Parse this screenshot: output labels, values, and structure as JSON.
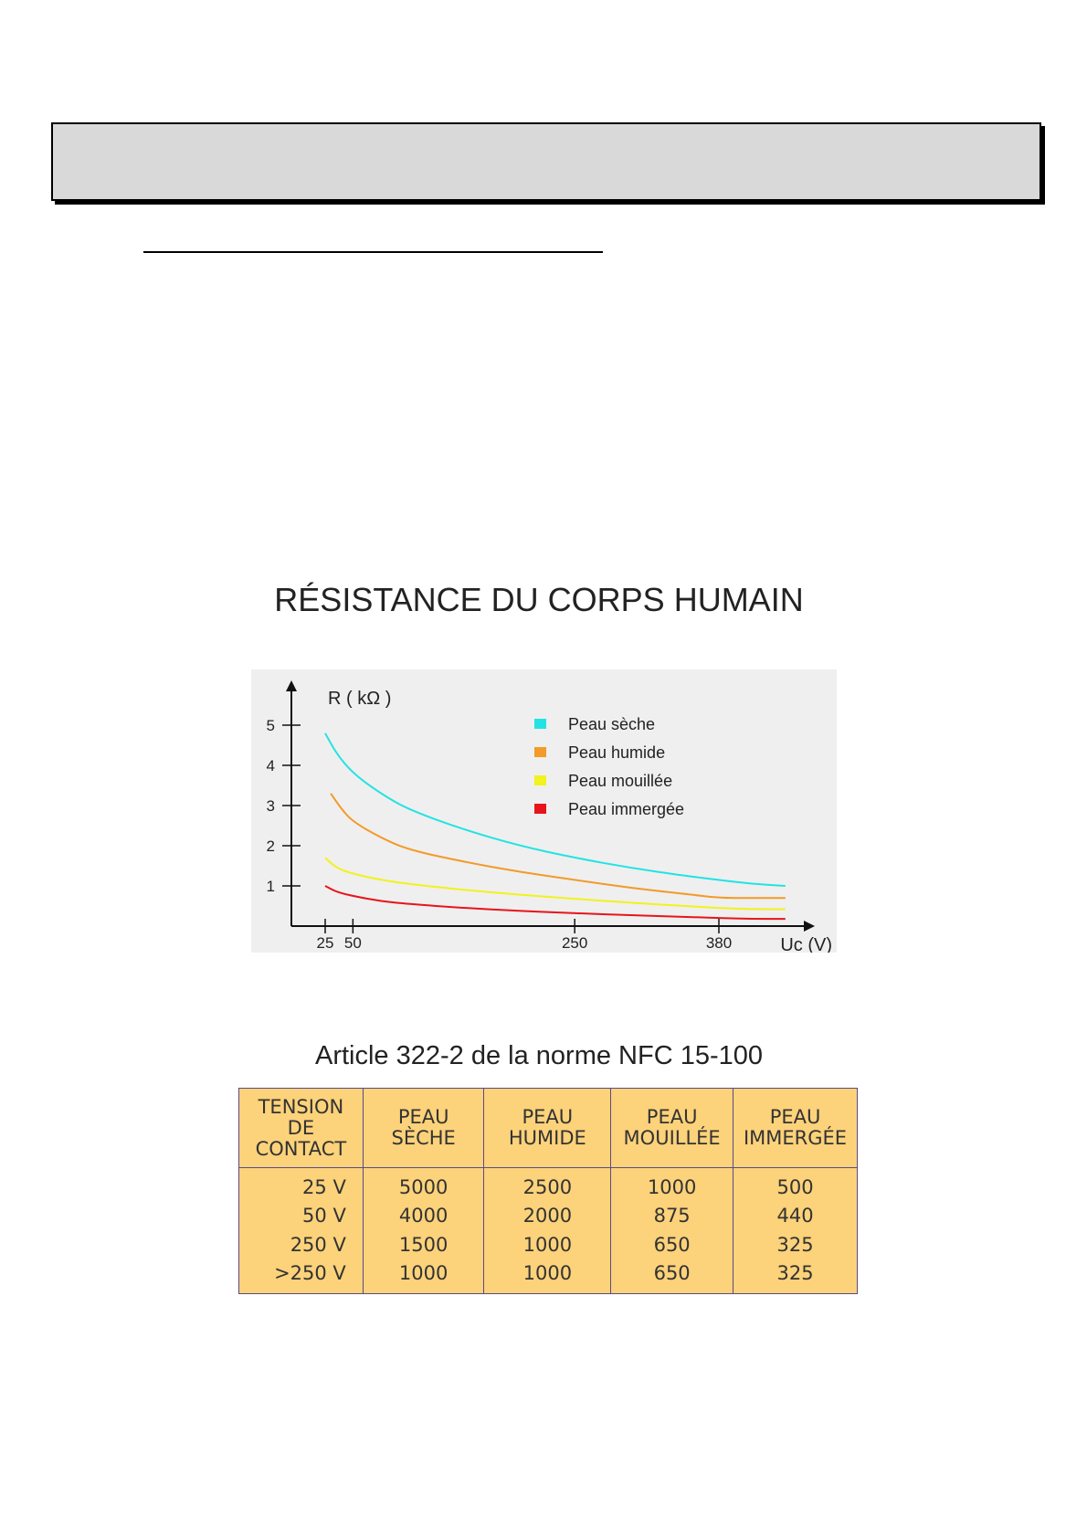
{
  "chart": {
    "title": "RÉSISTANCE DU CORPS HUMAIN"
  },
  "chart_data": {
    "type": "line",
    "title": "RÉSISTANCE DU CORPS HUMAIN",
    "xlabel": "Uc (V)",
    "ylabel": "R ( kΩ )",
    "x_ticks": [
      "25",
      "50",
      "250",
      "380"
    ],
    "y_ticks": [
      "1",
      "2",
      "3",
      "4",
      "5"
    ],
    "xlim": [
      0,
      470
    ],
    "ylim": [
      0,
      5.5
    ],
    "grid": false,
    "legend_position": "top-right",
    "series": [
      {
        "name": "Peau sèche",
        "color": "#22e3e3",
        "x": [
          25,
          35,
          50,
          75,
          100,
          150,
          200,
          250,
          300,
          350,
          380,
          410,
          440
        ],
        "y": [
          4.8,
          4.3,
          3.8,
          3.3,
          2.9,
          2.4,
          2.0,
          1.7,
          1.45,
          1.25,
          1.15,
          1.05,
          1.0
        ]
      },
      {
        "name": "Peau humide",
        "color": "#f39a28",
        "x": [
          30,
          40,
          50,
          75,
          100,
          150,
          200,
          250,
          300,
          350,
          380,
          410,
          440
        ],
        "y": [
          3.3,
          2.9,
          2.6,
          2.2,
          1.9,
          1.6,
          1.35,
          1.15,
          0.95,
          0.8,
          0.7,
          0.7,
          0.7
        ]
      },
      {
        "name": "Peau mouillée",
        "color": "#f2f21c",
        "x": [
          25,
          35,
          50,
          75,
          100,
          150,
          200,
          250,
          300,
          350,
          380,
          410,
          440
        ],
        "y": [
          1.7,
          1.45,
          1.3,
          1.15,
          1.05,
          0.9,
          0.78,
          0.68,
          0.58,
          0.5,
          0.45,
          0.42,
          0.42
        ]
      },
      {
        "name": "Peau immergée",
        "color": "#e8141c",
        "x": [
          25,
          35,
          50,
          75,
          100,
          150,
          200,
          250,
          300,
          350,
          380,
          410,
          440
        ],
        "y": [
          1.0,
          0.85,
          0.75,
          0.62,
          0.55,
          0.45,
          0.38,
          0.32,
          0.27,
          0.23,
          0.2,
          0.18,
          0.18
        ]
      }
    ]
  },
  "table": {
    "caption": "Article 322-2 de la norme NFC 15-100",
    "headers": [
      [
        "TENSION",
        "DE",
        "CONTACT"
      ],
      [
        "PEAU",
        "SÈCHE"
      ],
      [
        "PEAU",
        "HUMIDE"
      ],
      [
        "PEAU",
        "MOUILLÉE"
      ],
      [
        "PEAU",
        "IMMERGÉE"
      ]
    ],
    "columns": [
      [
        "25 V",
        "50 V",
        "250 V",
        ">250 V"
      ],
      [
        "5000",
        "4000",
        "1500",
        "1000"
      ],
      [
        "2500",
        "2000",
        "1000",
        "1000"
      ],
      [
        "1000",
        "875",
        "650",
        "650"
      ],
      [
        "500",
        "440",
        "325",
        "325"
      ]
    ]
  }
}
